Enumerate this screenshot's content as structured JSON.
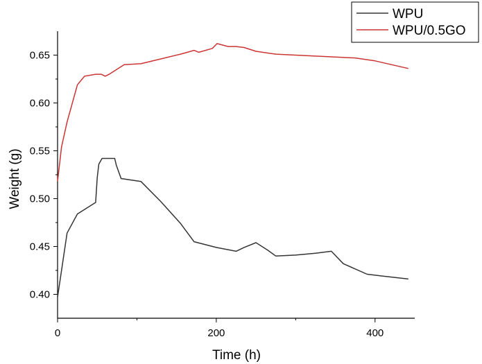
{
  "chart_data": {
    "type": "line",
    "title": "",
    "xlabel": "Time (h)",
    "ylabel": "Weight (g)",
    "xlim": [
      0,
      450
    ],
    "ylim": [
      0.375,
      0.675
    ],
    "x_ticks": [
      0,
      200,
      400
    ],
    "x_tick_labels": [
      "0",
      "200",
      "400"
    ],
    "y_ticks": [
      0.4,
      0.45,
      0.5,
      0.55,
      0.6,
      0.65
    ],
    "y_tick_labels": [
      "0.40",
      "0.45",
      "0.50",
      "0.55",
      "0.60",
      "0.65"
    ],
    "grid": false,
    "legend": "top-right",
    "series": [
      {
        "name": "WPU",
        "color": "#333333",
        "x": [
          0,
          12,
          25,
          48,
          50,
          52,
          56,
          60,
          72,
          74,
          80,
          105,
          130,
          155,
          172,
          200,
          225,
          235,
          250,
          265,
          275,
          300,
          325,
          345,
          360,
          390,
          410,
          442
        ],
        "y": [
          0.397,
          0.464,
          0.484,
          0.496,
          0.522,
          0.536,
          0.542,
          0.542,
          0.542,
          0.535,
          0.521,
          0.518,
          0.497,
          0.474,
          0.455,
          0.449,
          0.445,
          0.449,
          0.454,
          0.446,
          0.44,
          0.441,
          0.443,
          0.445,
          0.432,
          0.421,
          0.419,
          0.416
        ]
      },
      {
        "name": "WPU/0.5GO",
        "color": "#cc3333",
        "x": [
          0,
          5,
          12,
          25,
          34,
          48,
          55,
          60,
          65,
          84,
          105,
          130,
          155,
          172,
          178,
          195,
          201,
          215,
          225,
          235,
          250,
          275,
          300,
          325,
          350,
          375,
          400,
          442
        ],
        "y": [
          0.518,
          0.554,
          0.58,
          0.619,
          0.628,
          0.63,
          0.63,
          0.628,
          0.63,
          0.64,
          0.641,
          0.646,
          0.651,
          0.655,
          0.653,
          0.657,
          0.662,
          0.659,
          0.659,
          0.658,
          0.654,
          0.651,
          0.65,
          0.649,
          0.648,
          0.647,
          0.644,
          0.636
        ]
      }
    ]
  }
}
